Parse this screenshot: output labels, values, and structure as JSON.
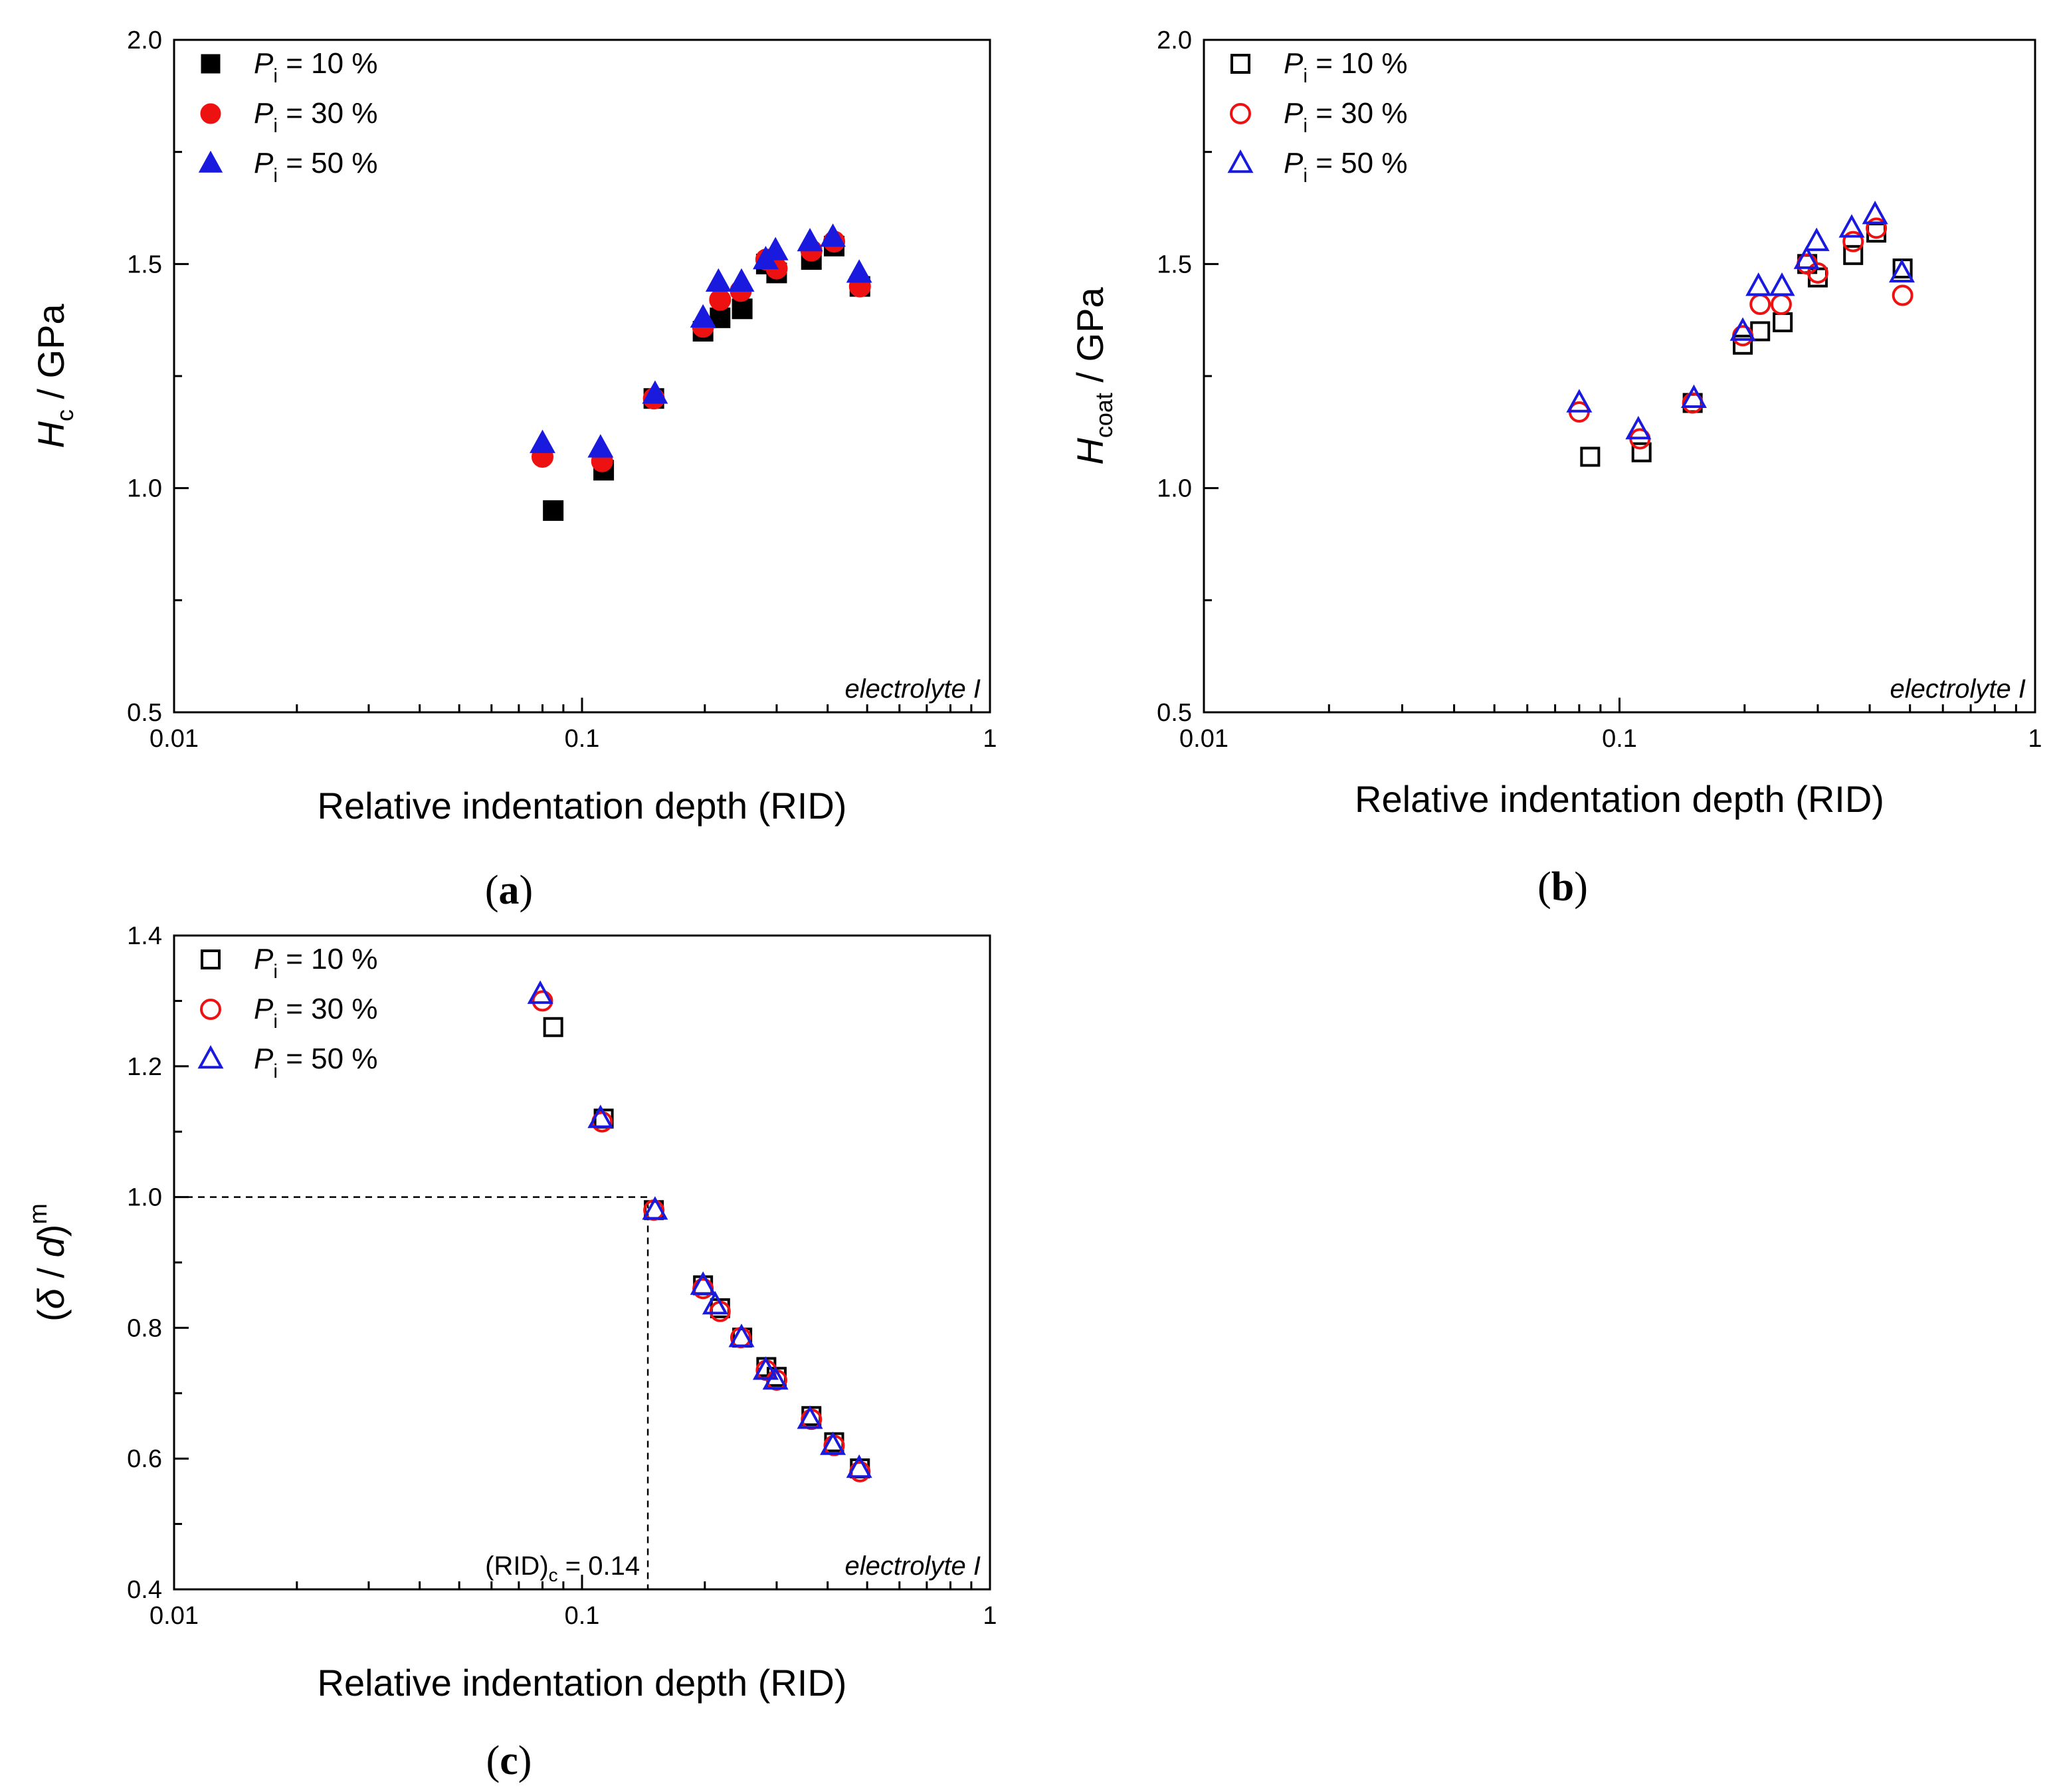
{
  "colors": {
    "p10": "#000000",
    "p30": "#ee1111",
    "p50": "#1a1adf"
  },
  "panels": [
    {
      "id": "a",
      "label": "(a)",
      "ylabel": {
        "main": "H",
        "sub": "c",
        "rest": " / GPa"
      },
      "xlabel": "Relative indentation depth (RID)",
      "note": "electrolyte I",
      "filled": true,
      "legend": [
        {
          "main": "P",
          "sub": "i",
          "rest": " = 10 %"
        },
        {
          "main": "P",
          "sub": "i",
          "rest": " = 30 %"
        },
        {
          "main": "P",
          "sub": "i",
          "rest": " = 50 %"
        }
      ]
    },
    {
      "id": "b",
      "label": "(b)",
      "ylabel": {
        "main": "H",
        "sub": "coat",
        "rest": " / GPa"
      },
      "xlabel": "Relative indentation depth (RID)",
      "note": "electrolyte I",
      "filled": false,
      "legend": [
        {
          "main": "P",
          "sub": "i",
          "rest": " = 10 %"
        },
        {
          "main": "P",
          "sub": "i",
          "rest": " = 30 %"
        },
        {
          "main": "P",
          "sub": "i",
          "rest": " = 50 %"
        }
      ]
    },
    {
      "id": "c",
      "label": "(c)",
      "ylabel": {
        "pre": "(",
        "delta": "δ",
        "mid": " / ",
        "d": "d",
        "post": ")",
        "sup": "m"
      },
      "xlabel": "Relative indentation depth (RID)",
      "note": "electrolyte I",
      "filled": false,
      "annotation": {
        "pre": "(RID)",
        "sub": "c",
        "rest": " = 0.14"
      },
      "legend": [
        {
          "main": "P",
          "sub": "i",
          "rest": " = 10 %"
        },
        {
          "main": "P",
          "sub": "i",
          "rest": " = 30 %"
        },
        {
          "main": "P",
          "sub": "i",
          "rest": " = 50 %"
        }
      ]
    }
  ],
  "chart_data": [
    {
      "panel": "a",
      "type": "scatter",
      "xscale": "log",
      "xlim": [
        0.01,
        1
      ],
      "ylim": [
        0.5,
        2.0
      ],
      "xticks": [
        "0.01",
        "0.1",
        "1"
      ],
      "yticks": [
        "0.5",
        "1.0",
        "1.5",
        "2.0"
      ],
      "series": [
        {
          "name": "Pi = 10 %",
          "marker": "square",
          "x": [
            0.085,
            0.113,
            0.15,
            0.198,
            0.218,
            0.247,
            0.283,
            0.3,
            0.365,
            0.415,
            0.48
          ],
          "y": [
            0.95,
            1.04,
            1.2,
            1.35,
            1.38,
            1.4,
            1.5,
            1.48,
            1.51,
            1.54,
            1.45
          ]
        },
        {
          "name": "Pi = 30 %",
          "marker": "circle",
          "x": [
            0.08,
            0.112,
            0.15,
            0.198,
            0.218,
            0.245,
            0.283,
            0.3,
            0.365,
            0.415,
            0.48
          ],
          "y": [
            1.07,
            1.06,
            1.2,
            1.36,
            1.42,
            1.44,
            1.51,
            1.49,
            1.53,
            1.55,
            1.45
          ]
        },
        {
          "name": "Pi = 50 %",
          "marker": "triangle",
          "x": [
            0.08,
            0.111,
            0.151,
            0.198,
            0.216,
            0.246,
            0.282,
            0.298,
            0.362,
            0.412,
            0.478
          ],
          "y": [
            1.1,
            1.09,
            1.21,
            1.38,
            1.46,
            1.46,
            1.51,
            1.53,
            1.55,
            1.56,
            1.48
          ]
        }
      ]
    },
    {
      "panel": "b",
      "type": "scatter",
      "xscale": "log",
      "xlim": [
        0.01,
        1
      ],
      "ylim": [
        0.5,
        2.0
      ],
      "xticks": [
        "0.01",
        "0.1",
        "1"
      ],
      "yticks": [
        "0.5",
        "1.0",
        "1.5",
        "2.0"
      ],
      "series": [
        {
          "name": "Pi = 10 %",
          "marker": "square",
          "x": [
            0.085,
            0.113,
            0.15,
            0.198,
            0.218,
            0.247,
            0.283,
            0.3,
            0.365,
            0.415,
            0.48
          ],
          "y": [
            1.07,
            1.08,
            1.19,
            1.32,
            1.35,
            1.37,
            1.5,
            1.47,
            1.52,
            1.57,
            1.49
          ]
        },
        {
          "name": "Pi = 30 %",
          "marker": "circle",
          "x": [
            0.08,
            0.112,
            0.15,
            0.198,
            0.218,
            0.245,
            0.283,
            0.3,
            0.365,
            0.415,
            0.48
          ],
          "y": [
            1.17,
            1.11,
            1.19,
            1.34,
            1.41,
            1.41,
            1.5,
            1.48,
            1.55,
            1.58,
            1.43
          ]
        },
        {
          "name": "Pi = 50 %",
          "marker": "triangle",
          "x": [
            0.08,
            0.111,
            0.151,
            0.198,
            0.216,
            0.246,
            0.282,
            0.298,
            0.362,
            0.412,
            0.478
          ],
          "y": [
            1.19,
            1.13,
            1.2,
            1.35,
            1.45,
            1.45,
            1.51,
            1.55,
            1.58,
            1.61,
            1.48
          ]
        }
      ]
    },
    {
      "panel": "c",
      "type": "scatter",
      "xscale": "log",
      "xlim": [
        0.01,
        1
      ],
      "ylim": [
        0.4,
        1.4
      ],
      "xticks": [
        "0.01",
        "0.1",
        "1"
      ],
      "yticks": [
        "0.4",
        "0.6",
        "0.8",
        "1.0",
        "1.2",
        "1.4"
      ],
      "reference_lines": {
        "y": 1.0,
        "x": 0.145
      },
      "series": [
        {
          "name": "Pi = 10 %",
          "marker": "square",
          "x": [
            0.085,
            0.113,
            0.15,
            0.198,
            0.218,
            0.247,
            0.283,
            0.3,
            0.365,
            0.415,
            0.48
          ],
          "y": [
            1.26,
            1.12,
            0.98,
            0.865,
            0.83,
            0.785,
            0.74,
            0.725,
            0.665,
            0.625,
            0.585
          ]
        },
        {
          "name": "Pi = 30 %",
          "marker": "circle",
          "x": [
            0.08,
            0.112,
            0.15,
            0.198,
            0.218,
            0.245,
            0.283,
            0.3,
            0.365,
            0.415,
            0.48
          ],
          "y": [
            1.3,
            1.115,
            0.98,
            0.86,
            0.825,
            0.785,
            0.735,
            0.72,
            0.66,
            0.62,
            0.58
          ]
        },
        {
          "name": "Pi = 50 %",
          "marker": "triangle",
          "x": [
            0.079,
            0.111,
            0.151,
            0.198,
            0.212,
            0.246,
            0.282,
            0.298,
            0.362,
            0.412,
            0.478
          ],
          "y": [
            1.31,
            1.12,
            0.98,
            0.865,
            0.835,
            0.785,
            0.735,
            0.72,
            0.66,
            0.62,
            0.585
          ]
        }
      ]
    }
  ]
}
